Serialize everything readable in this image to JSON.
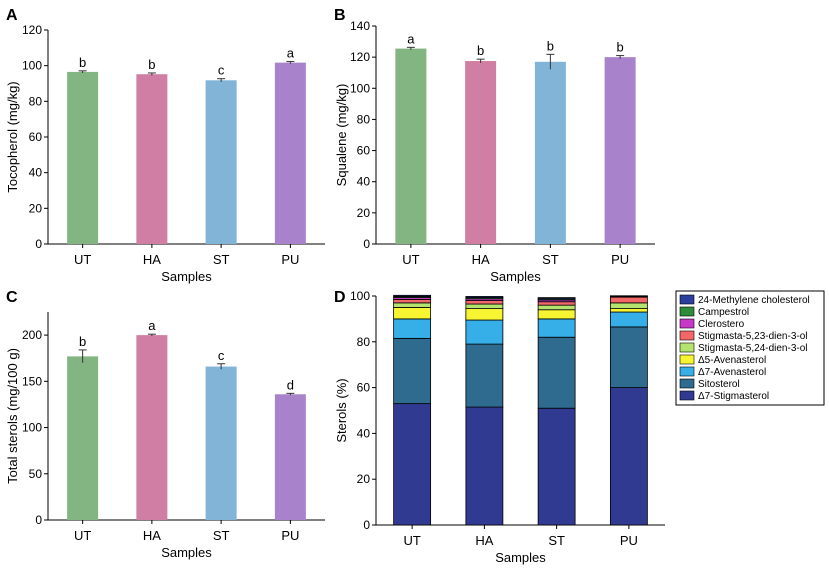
{
  "panels": {
    "A": {
      "letter": "A"
    },
    "B": {
      "letter": "B"
    },
    "C": {
      "letter": "C"
    },
    "D": {
      "letter": "D"
    }
  },
  "chart_data": [
    {
      "id": "A",
      "type": "bar",
      "categories": [
        "UT",
        "HA",
        "ST",
        "PU"
      ],
      "values": [
        96.5,
        95.2,
        91.8,
        101.7
      ],
      "errors": [
        0.6,
        0.7,
        0.9,
        0.6
      ],
      "significance": [
        "b",
        "b",
        "c",
        "a"
      ],
      "colors": [
        "#83b582",
        "#d07ea3",
        "#82b4d8",
        "#a883cb"
      ],
      "xlabel": "Samples",
      "ylabel": "Tocopherol (mg/kg)",
      "ylim": [
        0,
        120
      ],
      "yticks": [
        0,
        20,
        40,
        60,
        80,
        100,
        120
      ]
    },
    {
      "id": "B",
      "type": "bar",
      "categories": [
        "UT",
        "HA",
        "ST",
        "PU"
      ],
      "values": [
        125.5,
        117.5,
        117.0,
        120.0
      ],
      "errors": [
        0.8,
        1.2,
        4.8,
        1.0
      ],
      "significance": [
        "a",
        "b",
        "b",
        "b"
      ],
      "colors": [
        "#83b582",
        "#d07ea3",
        "#82b4d8",
        "#a883cb"
      ],
      "xlabel": "Samples",
      "ylabel": "Squalene (mg/kg)",
      "ylim": [
        0,
        140
      ],
      "yticks": [
        0,
        20,
        40,
        60,
        80,
        100,
        120,
        140
      ]
    },
    {
      "id": "C",
      "type": "bar",
      "categories": [
        "UT",
        "HA",
        "ST",
        "PU"
      ],
      "values": [
        177,
        200,
        166,
        136
      ],
      "errors": [
        7,
        1,
        3,
        1
      ],
      "significance": [
        "b",
        "a",
        "c",
        "d"
      ],
      "colors": [
        "#83b582",
        "#d07ea3",
        "#82b4d8",
        "#a883cb"
      ],
      "xlabel": "Samples",
      "ylabel": "Total sterols (mg/100 g)",
      "ylim": [
        0,
        225
      ],
      "yticks": [
        0,
        50,
        100,
        150,
        200
      ]
    },
    {
      "id": "D",
      "type": "stacked_bar",
      "categories": [
        "UT",
        "HA",
        "ST",
        "PU"
      ],
      "xlabel": "Samples",
      "ylabel": "Sterols (%)",
      "ylim": [
        0,
        100
      ],
      "yticks": [
        0,
        20,
        40,
        60,
        80,
        100
      ],
      "series": [
        {
          "name": "Δ7-Stigmasterol",
          "color": "#313a91",
          "values": [
            53,
            51.5,
            51,
            60
          ]
        },
        {
          "name": "Sitosterol",
          "color": "#2f6b8e",
          "values": [
            28.5,
            27.5,
            31,
            26.5
          ]
        },
        {
          "name": "Δ7-Avenasterol",
          "color": "#36aee8",
          "values": [
            8.5,
            10.5,
            8,
            6.5
          ]
        },
        {
          "name": "Δ5-Avenasterol",
          "color": "#f7f531",
          "values": [
            5,
            5,
            4,
            1.5
          ]
        },
        {
          "name": "Stigmasta-5,24-dien-3-ol",
          "color": "#b4e36e",
          "values": [
            2,
            2,
            2,
            2.5
          ]
        },
        {
          "name": "Stigmasta-5,23-dien-3-ol",
          "color": "#f26868",
          "values": [
            1.5,
            1.5,
            1.5,
            2.5
          ]
        },
        {
          "name": "Clerostero",
          "color": "#c738c7",
          "values": [
            0.8,
            0.8,
            0.8,
            0.3
          ]
        },
        {
          "name": "Campestrol",
          "color": "#2e8b3a",
          "values": [
            0.5,
            0.5,
            0.5,
            0.2
          ]
        },
        {
          "name": "24-Methylene cholesterol",
          "color": "#2b3f9e",
          "values": [
            0.5,
            0.5,
            0.5,
            0.1
          ]
        }
      ],
      "legend_order": [
        "24-Methylene cholesterol",
        "Campestrol",
        "Clerostero",
        "Stigmasta-5,23-dien-3-ol",
        "Stigmasta-5,24-dien-3-ol",
        "Δ5-Avenasterol",
        "Δ7-Avenasterol",
        "Sitosterol",
        "Δ7-Stigmasterol"
      ],
      "legend_position": "top-right"
    }
  ]
}
